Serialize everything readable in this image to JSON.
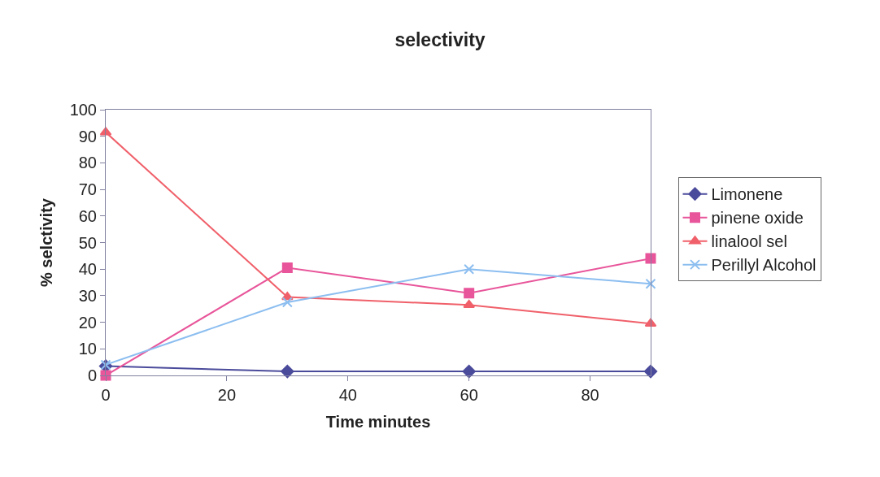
{
  "chart_data": {
    "type": "line",
    "title": "selectivity",
    "xlabel": "Time minutes",
    "ylabel": "% selctivity",
    "x": [
      0,
      30,
      60,
      90
    ],
    "series": [
      {
        "name": "Limonene",
        "color": "#4b4b9c",
        "marker": "diamond",
        "values": [
          3.5,
          1.5,
          1.5,
          1.5
        ]
      },
      {
        "name": "pinene oxide",
        "color": "#e8559a",
        "marker": "square",
        "values": [
          0,
          40.5,
          31,
          44
        ]
      },
      {
        "name": "linalool sel",
        "color": "#f0606a",
        "marker": "triangle",
        "values": [
          91.5,
          29.5,
          26.5,
          19.5
        ]
      },
      {
        "name": "Perillyl Alcohol",
        "color": "#8cbef0",
        "marker": "cross",
        "values": [
          4,
          27.5,
          40,
          34.5
        ]
      }
    ],
    "xlim": [
      0,
      90
    ],
    "xticks": [
      0,
      20,
      40,
      60,
      80
    ],
    "ylim": [
      0,
      100
    ],
    "yticks": [
      0,
      10,
      20,
      30,
      40,
      50,
      60,
      70,
      80,
      90,
      100
    ],
    "legend": "right",
    "line_style": "solid"
  }
}
